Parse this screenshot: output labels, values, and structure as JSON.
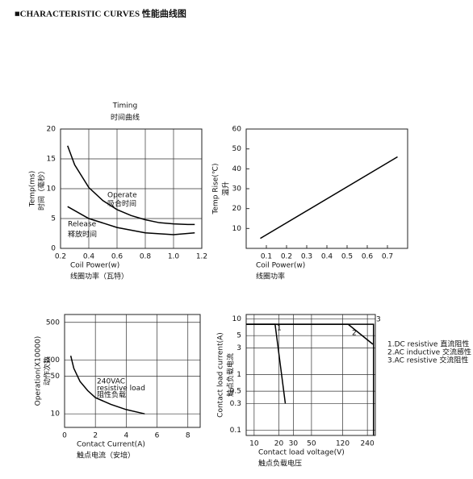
{
  "page_title": "■CHARACTERISTIC CURVES 性能曲线图",
  "chart_data": [
    {
      "type": "line",
      "title": "Timing",
      "subtitle": "时间曲线",
      "xlabel": "Coil Power(w)",
      "xlabel_cn": "线圈功率（瓦特）",
      "ylabel": "Temp(ms)",
      "ylabel_cn": "时间（毫秒）",
      "xlim": [
        0.2,
        1.2
      ],
      "ylim": [
        0,
        20
      ],
      "xticks": [
        0.2,
        0.4,
        0.6,
        0.8,
        {
          "value": 1,
          "label": "1.0"
        },
        1.2
      ],
      "yticks": [
        0,
        5,
        10,
        15,
        20
      ],
      "grid": true,
      "series": [
        {
          "name": "Operate",
          "name_cn": "吸合时间",
          "color": "#000000",
          "x": [
            0.25,
            0.3,
            0.4,
            0.5,
            0.6,
            0.7,
            0.8,
            0.9,
            1.0,
            1.1,
            1.15
          ],
          "values": [
            17.2,
            14,
            10.2,
            8,
            6.5,
            5.5,
            4.8,
            4.3,
            4.1,
            4,
            4
          ]
        },
        {
          "name": "Release",
          "name_cn": "释放时间",
          "color": "#000000",
          "x": [
            0.25,
            0.4,
            0.6,
            0.8,
            1.0,
            1.15
          ],
          "values": [
            7,
            5,
            3.5,
            2.6,
            2.3,
            2.6
          ]
        }
      ]
    },
    {
      "type": "line",
      "xlabel": "Coil Power(w)",
      "xlabel_cn": "线圈功率",
      "ylabel": "Temp Rise(℃)",
      "ylabel_cn": "温升",
      "xlim": [
        0,
        0.8
      ],
      "ylim": [
        0,
        60
      ],
      "xticks": [
        0.1,
        0.2,
        0.3,
        0.4,
        0.5,
        0.6,
        0.7
      ],
      "yticks": [
        10,
        20,
        30,
        40,
        50,
        60
      ],
      "grid": false,
      "series": [
        {
          "color": "#000000",
          "x": [
            0.07,
            0.75
          ],
          "values": [
            5,
            46
          ]
        }
      ]
    },
    {
      "type": "line",
      "xlabel": "Contact Current(A)",
      "xlabel_cn": "触点电流（安培）",
      "ylabel": "Operation(X10000)",
      "ylabel_cn": "动作次数",
      "xlim": [
        0,
        8.8
      ],
      "ylim": [
        5.6,
        700
      ],
      "ylog": true,
      "xticks": [
        0,
        2,
        4,
        6,
        8
      ],
      "yticks": [
        10,
        50,
        100,
        500
      ],
      "grid": true,
      "annotation": [
        "240VAC",
        "resistive load",
        "阻性负载"
      ],
      "series": [
        {
          "color": "#000000",
          "x": [
            0.4,
            0.6,
            1,
            1.5,
            2,
            3,
            4,
            5.2
          ],
          "values": [
            120,
            70,
            40,
            27,
            20,
            15,
            12,
            10
          ]
        }
      ]
    },
    {
      "type": "line",
      "xlabel": "Contact load voltage(V)",
      "xlabel_cn": "触点负载电压",
      "ylabel": "Contact load current(A)",
      "ylabel_cn": "触点负载电流",
      "xlim": [
        8,
        300
      ],
      "ylim": [
        0.08,
        12
      ],
      "xlog": true,
      "ylog": true,
      "xticks": [
        10,
        20,
        30,
        50,
        120,
        240
      ],
      "yticks": [
        0.1,
        0.3,
        0.5,
        1,
        3,
        5,
        10
      ],
      "grid": true,
      "legend": [
        "1.DC resistive  直流阻性",
        "2.AC inductive  交流感性",
        "3.AC resistive  交流阻性"
      ],
      "series": [
        {
          "name": "1",
          "color": "#000000",
          "x": [
            8,
            18,
            24
          ],
          "values": [
            8,
            8,
            0.3
          ]
        },
        {
          "name": "2",
          "color": "#000000",
          "x": [
            8,
            140,
            280
          ],
          "values": [
            8,
            8,
            3.5
          ]
        },
        {
          "name": "3",
          "color": "#000000",
          "x": [
            8,
            285,
            285
          ],
          "values": [
            8,
            8,
            0.08
          ]
        }
      ]
    }
  ]
}
